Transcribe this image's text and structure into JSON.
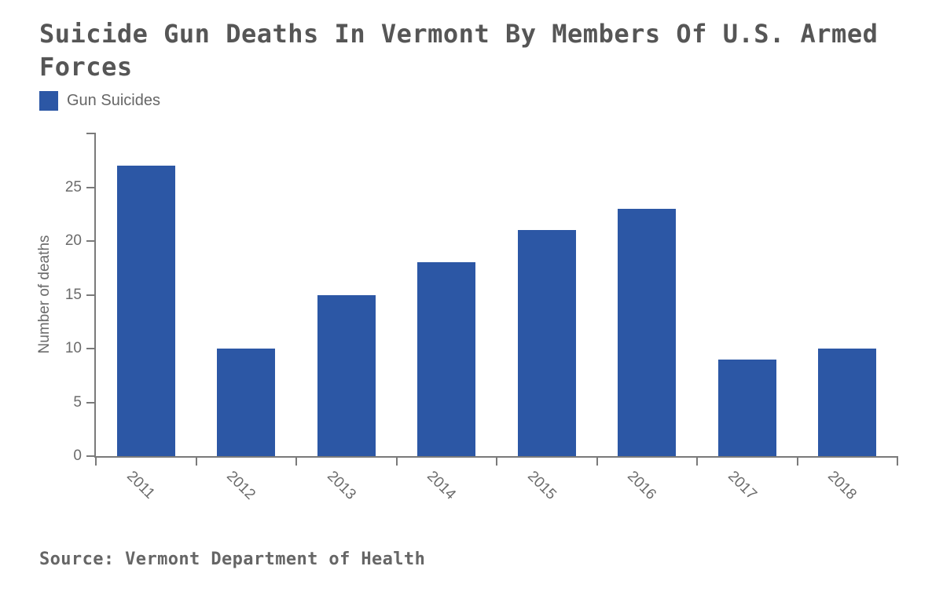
{
  "title": "Suicide Gun Deaths In Vermont By Members Of U.S. Armed Forces",
  "legend": {
    "label": "Gun Suicides"
  },
  "source": "Source: Vermont Department of Health",
  "colors": {
    "bar": "#2C57A5",
    "axis": "#7a7a7a",
    "title_text": "#565656",
    "label_text": "#6b6b6b"
  },
  "chart_data": {
    "type": "bar",
    "categories": [
      "2011",
      "2012",
      "2013",
      "2014",
      "2015",
      "2016",
      "2017",
      "2018"
    ],
    "values": [
      27,
      10,
      15,
      18,
      21,
      23,
      9,
      10
    ],
    "series_name": "Gun Suicides",
    "title": "Suicide Gun Deaths In Vermont By Members Of U.S. Armed Forces",
    "xlabel": "",
    "ylabel": "Number of deaths",
    "yticks": [
      0,
      5,
      10,
      15,
      20,
      25
    ],
    "ylim": [
      0,
      30
    ],
    "grid": false,
    "legend_position": "top-left",
    "x_label_rotation_deg": 45
  }
}
